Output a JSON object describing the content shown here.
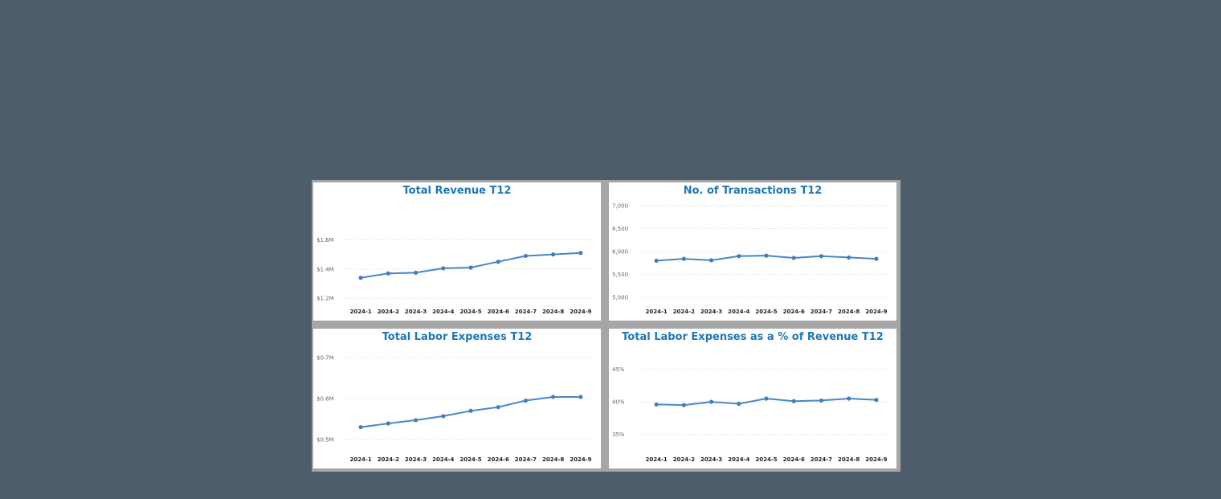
{
  "chart_data": [
    {
      "type": "line",
      "title": "Total Revenue T12",
      "categories": [
        "2024-1",
        "2024-2",
        "2024-3",
        "2024-4",
        "2024-5",
        "2024-6",
        "2024-7",
        "2024-8",
        "2024-9"
      ],
      "series": [
        {
          "values": [
            1.34,
            1.37,
            1.375,
            1.405,
            1.41,
            1.45,
            1.49,
            1.5,
            1.51
          ]
        }
      ],
      "yticks": [
        1.2,
        1.4,
        1.6
      ],
      "ytick_labels": [
        "$1.2M",
        "$1.4M",
        "$1.6M"
      ],
      "ylim": [
        1.19,
        1.85
      ],
      "grid": true,
      "color": "#4a86c6"
    },
    {
      "type": "line",
      "title": "No. of Transactions T12",
      "categories": [
        "2024-1",
        "2024-2",
        "2024-3",
        "2024-4",
        "2024-5",
        "2024-6",
        "2024-7",
        "2024-8",
        "2024-9"
      ],
      "series": [
        {
          "values": [
            5800,
            5840,
            5810,
            5900,
            5910,
            5860,
            5900,
            5870,
            5840
          ]
        }
      ],
      "yticks": [
        5000,
        5500,
        6000,
        6500,
        7000
      ],
      "ytick_labels": [
        "5,000",
        "5,500",
        "6,000",
        "6,500",
        "7,000"
      ],
      "ylim": [
        4950,
        7050
      ],
      "grid": true,
      "color": "#4a86c6"
    },
    {
      "type": "line",
      "title": "Total Labor Expenses T12",
      "categories": [
        "2024-1",
        "2024-2",
        "2024-3",
        "2024-4",
        "2024-5",
        "2024-6",
        "2024-7",
        "2024-8",
        "2024-9"
      ],
      "series": [
        {
          "values": [
            0.53,
            0.539,
            0.547,
            0.557,
            0.57,
            0.579,
            0.595,
            0.604,
            0.604
          ]
        }
      ],
      "yticks": [
        0.5,
        0.6,
        0.7
      ],
      "ytick_labels": [
        "$0.5M",
        "$0.6M",
        "$0.7M"
      ],
      "ylim": [
        0.48,
        0.72
      ],
      "grid": true,
      "color": "#4a86c6"
    },
    {
      "type": "line",
      "title": "Total Labor Expenses as a % of Revenue T12",
      "categories": [
        "2024-1",
        "2024-2",
        "2024-3",
        "2024-4",
        "2024-5",
        "2024-6",
        "2024-7",
        "2024-8",
        "2024-9"
      ],
      "series": [
        {
          "values": [
            39.6,
            39.5,
            40.0,
            39.7,
            40.5,
            40.1,
            40.2,
            40.5,
            40.3
          ]
        }
      ],
      "yticks": [
        35,
        40,
        45
      ],
      "ytick_labels": [
        "35%",
        "40%",
        "45%"
      ],
      "ylim": [
        33,
        48
      ],
      "grid": true,
      "color": "#4a86c6"
    }
  ]
}
